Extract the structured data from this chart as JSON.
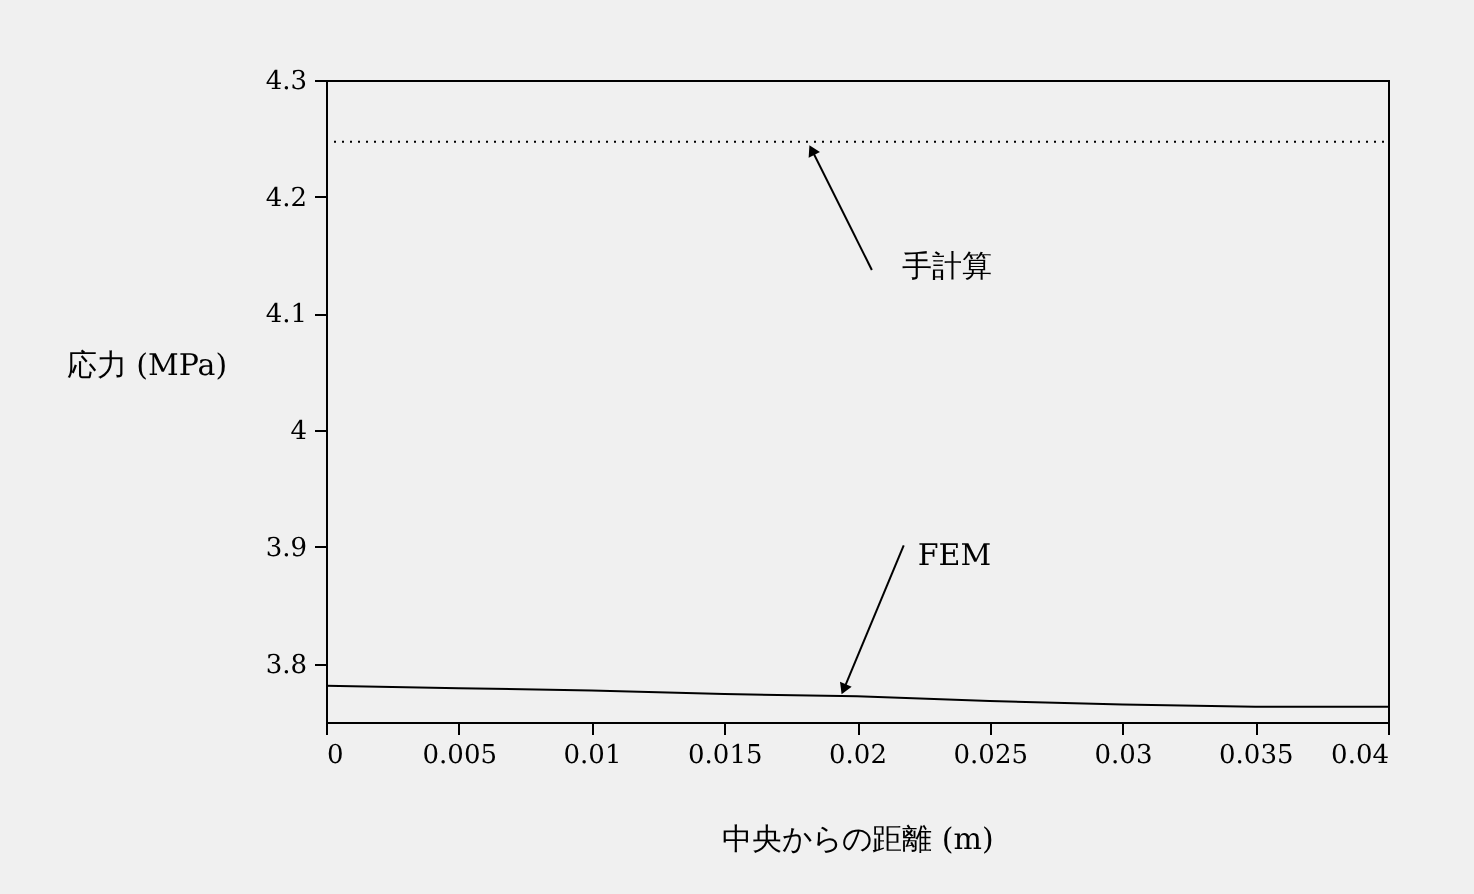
{
  "chart_data": {
    "type": "line",
    "xlabel": "中央からの距離 (m)",
    "ylabel": "応力 (MPa)",
    "x": [
      0,
      0.005,
      0.01,
      0.015,
      0.02,
      0.025,
      0.03,
      0.035,
      0.04
    ],
    "series": [
      {
        "color": "#000000",
        "line_style": "dotted",
        "values": [
          4.247,
          4.247,
          4.247,
          4.247,
          4.247,
          4.247,
          4.247,
          4.247,
          4.247
        ]
      },
      {
        "color": "#000000",
        "line_style": "solid",
        "values": [
          3.781,
          3.779,
          3.777,
          3.774,
          3.772,
          3.768,
          3.765,
          3.763,
          3.763
        ]
      }
    ],
    "xlim": [
      0,
      0.04
    ],
    "xticks": [
      0,
      0.005,
      0.01,
      0.015,
      0.02,
      0.025,
      0.03,
      0.035,
      0.04
    ],
    "ylim": [
      3.75,
      4.3
    ],
    "yticks": [
      3.8,
      3.9,
      4,
      4.1,
      4.2,
      4.3
    ],
    "grid": false,
    "marker": "none",
    "annotations": [
      {
        "text": "手計算",
        "x": 0.0183,
        "y": 4.24
      },
      {
        "text": "FEM",
        "x": 0.0195,
        "y": 3.778
      }
    ]
  }
}
